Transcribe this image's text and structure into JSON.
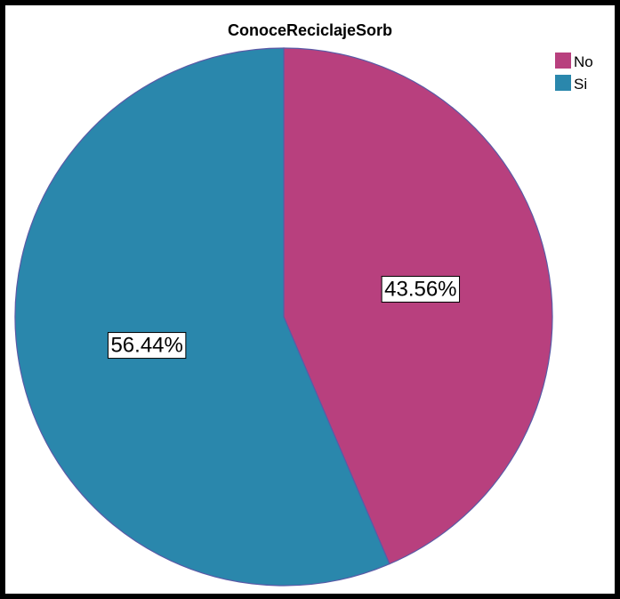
{
  "chart_data": {
    "type": "pie",
    "title": "ConoceReciclajeSorb",
    "slices": [
      {
        "label": "No",
        "value": 43.56,
        "data_label": "43.56%",
        "color": "#b8407e"
      },
      {
        "label": "Si",
        "value": 56.44,
        "data_label": "56.44%",
        "color": "#2a87ac"
      }
    ],
    "legend": {
      "placement": "top-right",
      "entries": [
        "No",
        "Si"
      ]
    },
    "start_angle": "12 o'clock",
    "direction": "clockwise"
  },
  "colors": {
    "frame_border": "#000000",
    "slice_edge": "#5a5aa6",
    "background": "#ffffff"
  }
}
